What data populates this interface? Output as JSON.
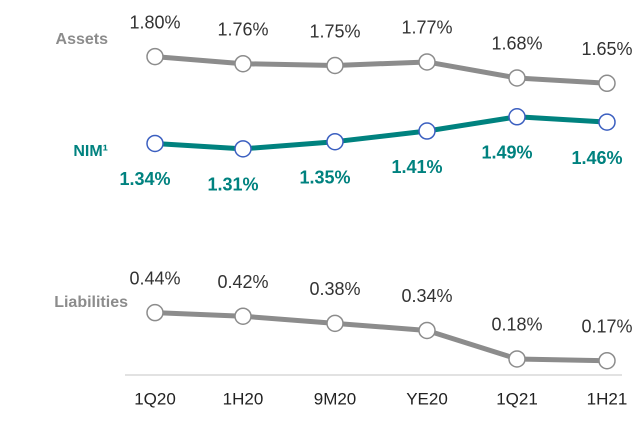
{
  "chart_data": {
    "type": "line",
    "categories": [
      "1Q20",
      "1H20",
      "9M20",
      "YE20",
      "1Q21",
      "1H21"
    ],
    "series": [
      {
        "name": "Assets",
        "color": "#8c8c8c",
        "marker_color": "#8c8c8c",
        "values": [
          1.8,
          1.76,
          1.75,
          1.77,
          1.68,
          1.65
        ],
        "value_labels": [
          "1.80%",
          "1.76%",
          "1.75%",
          "1.77%",
          "1.68%",
          "1.65%"
        ]
      },
      {
        "name": "NIM¹",
        "color": "#00827f",
        "marker_color": "#3b5fc0",
        "values": [
          1.34,
          1.31,
          1.35,
          1.41,
          1.49,
          1.46
        ],
        "value_labels": [
          "1.34%",
          "1.31%",
          "1.35%",
          "1.41%",
          "1.49%",
          "1.46%"
        ]
      },
      {
        "name": "Liabilities",
        "color": "#8c8c8c",
        "marker_color": "#8c8c8c",
        "values": [
          0.44,
          0.42,
          0.38,
          0.34,
          0.18,
          0.17
        ],
        "value_labels": [
          "0.44%",
          "0.42%",
          "0.38%",
          "0.34%",
          "0.18%",
          "0.17%"
        ]
      }
    ]
  }
}
